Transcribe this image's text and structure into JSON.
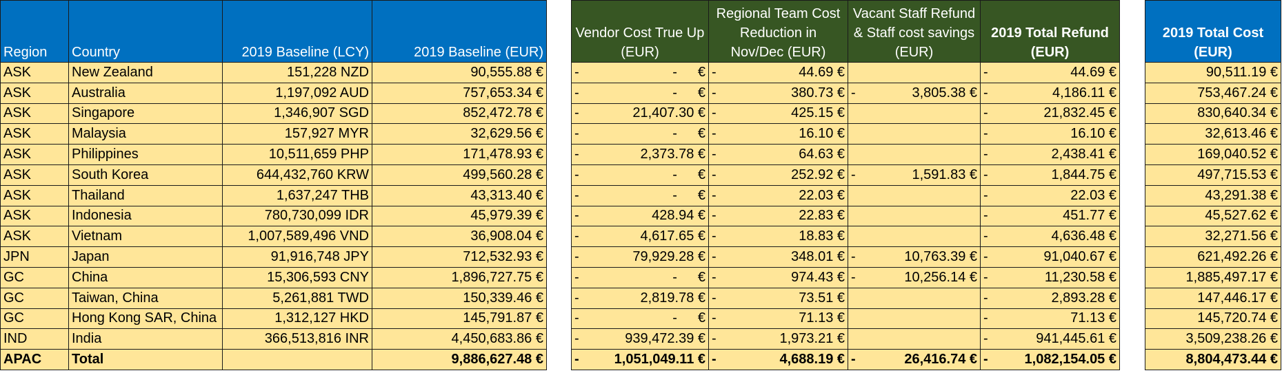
{
  "table1": {
    "headers": [
      "Region",
      "Country",
      "2019 Baseline (LCY)",
      "2019 Baseline (EUR)"
    ],
    "rows": [
      [
        "ASK",
        "New Zealand",
        "151,228 NZD",
        "90,555.88 €"
      ],
      [
        "ASK",
        "Australia",
        "1,197,092 AUD",
        "757,653.34 €"
      ],
      [
        "ASK",
        "Singapore",
        "1,346,907 SGD",
        "852,472.78 €"
      ],
      [
        "ASK",
        "Malaysia",
        "157,927 MYR",
        "32,629.56 €"
      ],
      [
        "ASK",
        "Philippines",
        "10,511,659 PHP",
        "171,478.93 €"
      ],
      [
        "ASK",
        "South Korea",
        "644,432,760 KRW",
        "499,560.28 €"
      ],
      [
        "ASK",
        "Thailand",
        "1,637,247 THB",
        "43,313.40 €"
      ],
      [
        "ASK",
        "Indonesia",
        "780,730,099 IDR",
        "45,979.39 €"
      ],
      [
        "ASK",
        "Vietnam",
        "1,007,589,496 VND",
        "36,908.04 €"
      ],
      [
        "JPN",
        "Japan",
        "91,916,748 JPY",
        "712,532.93 €"
      ],
      [
        "GC",
        "China",
        "15,306,593 CNY",
        "1,896,727.75 €"
      ],
      [
        "GC",
        "Taiwan, China",
        "5,261,881 TWD",
        "150,339.46 €"
      ],
      [
        "GC",
        "Hong Kong SAR, China",
        "1,312,127 HKD",
        "145,791.87 €"
      ],
      [
        "IND",
        "India",
        "366,513,816 INR",
        "4,450,683.86 €"
      ]
    ],
    "total": [
      "APAC",
      "Total",
      "",
      "9,886,627.48 €"
    ]
  },
  "table2": {
    "headers": [
      "Vendor Cost True Up (EUR)",
      "Regional Team Cost Reduction in Nov/Dec (EUR)",
      "Vacant Staff Refund & Staff cost savings (EUR)",
      "2019 Total Refund (EUR)"
    ],
    "rows": [
      [
        [
          "-",
          "-",
          "€"
        ],
        [
          "-",
          "44.69 €"
        ],
        [
          "",
          ""
        ],
        [
          "-",
          "44.69 €"
        ]
      ],
      [
        [
          "-",
          "-",
          "€"
        ],
        [
          "-",
          "380.73 €"
        ],
        [
          "-",
          "3,805.38 €"
        ],
        [
          "-",
          "4,186.11 €"
        ]
      ],
      [
        [
          "-",
          "21,407.30 €",
          ""
        ],
        [
          "-",
          "425.15 €"
        ],
        [
          "",
          ""
        ],
        [
          "-",
          "21,832.45 €"
        ]
      ],
      [
        [
          "-",
          "-",
          "€"
        ],
        [
          "-",
          "16.10 €"
        ],
        [
          "",
          ""
        ],
        [
          "-",
          "16.10 €"
        ]
      ],
      [
        [
          "-",
          "2,373.78 €",
          ""
        ],
        [
          "-",
          "64.63 €"
        ],
        [
          "",
          ""
        ],
        [
          "-",
          "2,438.41 €"
        ]
      ],
      [
        [
          "-",
          "-",
          "€"
        ],
        [
          "-",
          "252.92 €"
        ],
        [
          "-",
          "1,591.83 €"
        ],
        [
          "-",
          "1,844.75 €"
        ]
      ],
      [
        [
          "-",
          "-",
          "€"
        ],
        [
          "-",
          "22.03 €"
        ],
        [
          "",
          ""
        ],
        [
          "-",
          "22.03 €"
        ]
      ],
      [
        [
          "-",
          "428.94 €",
          ""
        ],
        [
          "-",
          "22.83 €"
        ],
        [
          "",
          ""
        ],
        [
          "-",
          "451.77 €"
        ]
      ],
      [
        [
          "-",
          "4,617.65 €",
          ""
        ],
        [
          "-",
          "18.83 €"
        ],
        [
          "",
          ""
        ],
        [
          "-",
          "4,636.48 €"
        ]
      ],
      [
        [
          "-",
          "79,929.28 €",
          ""
        ],
        [
          "-",
          "348.01 €"
        ],
        [
          "-",
          "10,763.39 €"
        ],
        [
          "-",
          "91,040.67 €"
        ]
      ],
      [
        [
          "-",
          "-",
          "€"
        ],
        [
          "-",
          "974.43 €"
        ],
        [
          "-",
          "10,256.14 €"
        ],
        [
          "-",
          "11,230.58 €"
        ]
      ],
      [
        [
          "-",
          "2,819.78 €",
          ""
        ],
        [
          "-",
          "73.51 €"
        ],
        [
          "",
          ""
        ],
        [
          "-",
          "2,893.28 €"
        ]
      ],
      [
        [
          "-",
          "-",
          "€"
        ],
        [
          "-",
          "71.13 €"
        ],
        [
          "",
          ""
        ],
        [
          "-",
          "71.13 €"
        ]
      ],
      [
        [
          "-",
          "939,472.39 €",
          ""
        ],
        [
          "-",
          "1,973.21 €"
        ],
        [
          "",
          ""
        ],
        [
          "-",
          "941,445.61 €"
        ]
      ]
    ],
    "total": [
      [
        "-",
        "1,051,049.11 €",
        ""
      ],
      [
        "-",
        "4,688.19 €"
      ],
      [
        "-",
        "26,416.74 €"
      ],
      [
        "-",
        "1,082,154.05 €"
      ]
    ]
  },
  "table3": {
    "header": "2019 Total Cost (EUR)",
    "values": [
      "90,511.19 €",
      "753,467.24 €",
      "830,640.34 €",
      "32,613.46 €",
      "169,040.52 €",
      "497,715.53 €",
      "43,291.38 €",
      "45,527.62 €",
      "32,271.56 €",
      "621,492.26 €",
      "1,885,497.17 €",
      "147,446.17 €",
      "145,720.74 €",
      "3,509,238.26 €"
    ],
    "total": "8,804,473.44 €"
  },
  "colors": {
    "blue_header": "#0070c0",
    "green_header": "#375623",
    "cell_fill": "#ffe699"
  }
}
